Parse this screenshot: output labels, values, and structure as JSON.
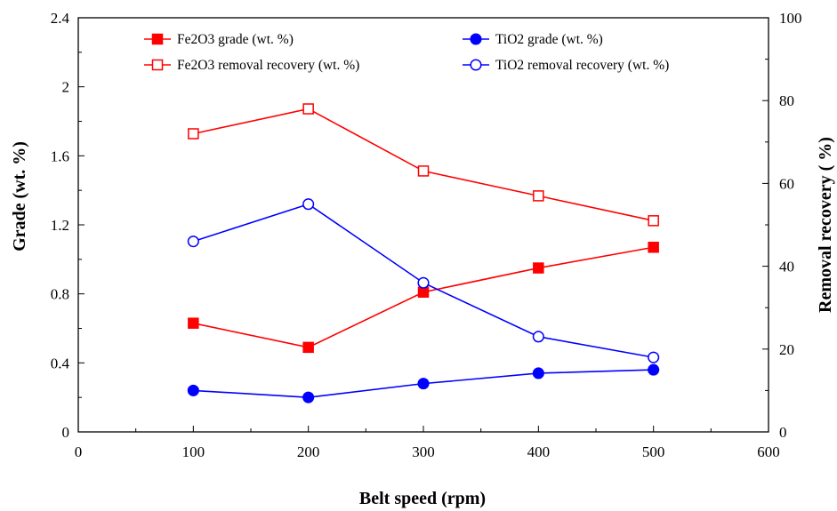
{
  "chart_data": {
    "type": "line",
    "title": "",
    "xlabel": "Belt speed (rpm)",
    "ylabel": "Grade (wt. %)",
    "y2label": "Removal  recovery ( %)",
    "x": [
      100,
      200,
      300,
      400,
      500
    ],
    "xlim": [
      0,
      600
    ],
    "xticks": [
      "0",
      "100",
      "200",
      "300",
      "400",
      "500",
      "600"
    ],
    "ylim": [
      0,
      2.4
    ],
    "yticks": [
      "0",
      "0.4",
      "0.8",
      "1.2",
      "1.6",
      "2",
      "2.4"
    ],
    "y2lim": [
      0,
      100
    ],
    "y2ticks": [
      "0",
      "20",
      "40",
      "60",
      "80",
      "100"
    ],
    "grid": false,
    "legend_position": "top",
    "series": [
      {
        "name": "Fe2O3 grade (wt. %)",
        "axis": "left",
        "color": "#ff0000",
        "marker": "filled-square",
        "values": [
          0.63,
          0.49,
          0.81,
          0.95,
          1.07
        ]
      },
      {
        "name": "TiO2  grade (wt. %)",
        "axis": "left",
        "color": "#0000ff",
        "marker": "filled-circle",
        "values": [
          0.24,
          0.2,
          0.28,
          0.34,
          0.36
        ]
      },
      {
        "name": "Fe2O3 removal recovery (wt. %)",
        "axis": "right",
        "color": "#ff0000",
        "marker": "open-square",
        "values": [
          72,
          78,
          63,
          57,
          51
        ]
      },
      {
        "name": "TiO2 removal recovery (wt. %)",
        "axis": "right",
        "color": "#0000ff",
        "marker": "open-circle",
        "values": [
          46,
          55,
          36,
          23,
          18
        ]
      }
    ]
  }
}
